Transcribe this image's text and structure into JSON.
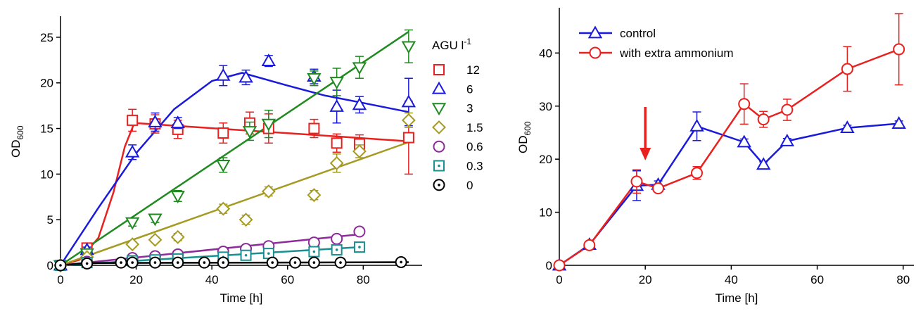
{
  "chart_data": [
    {
      "type": "scatter",
      "xlabel": "Time [h]",
      "ylabel": {
        "main": "OD",
        "sub": "600"
      },
      "xlim": [
        0,
        95
      ],
      "ylim": [
        0,
        27
      ],
      "xticks": [
        "0",
        "20",
        "40",
        "60",
        "80"
      ],
      "yticks": [
        "0",
        "5",
        "10",
        "15",
        "20",
        "25"
      ],
      "legend": {
        "title": "AGU l",
        "title_sup": "-1",
        "placement": "right of plot"
      },
      "series": [
        {
          "name": "12",
          "color": "#e8211f",
          "marker": "square",
          "x": [
            0,
            7,
            19,
            25,
            31,
            43,
            50,
            55,
            67,
            73,
            79,
            92
          ],
          "y": [
            0,
            1.9,
            15.9,
            15.5,
            14.9,
            14.5,
            15.6,
            15.0,
            15.0,
            13.4,
            13.3,
            14.0
          ],
          "err": [
            0,
            0.3,
            1.2,
            1.0,
            1.0,
            1.1,
            1.2,
            1.6,
            1.0,
            1.0,
            1.0,
            4.0
          ],
          "fit": [
            [
              0,
              0
            ],
            [
              5,
              0.6
            ],
            [
              10,
              3
            ],
            [
              14,
              8
            ],
            [
              17,
              13
            ],
            [
              19.5,
              15.6
            ],
            [
              92,
              13.6
            ]
          ]
        },
        {
          "name": "6",
          "color": "#1a1adc",
          "marker": "triangle-up",
          "x": [
            0,
            7,
            19,
            25,
            31,
            43,
            49,
            55,
            67,
            73,
            79,
            92
          ],
          "y": [
            0,
            1.7,
            12.4,
            15.7,
            15.6,
            20.8,
            20.6,
            22.4,
            20.7,
            17.4,
            17.6,
            17.9
          ],
          "err": [
            0,
            0.3,
            0.8,
            1.0,
            0.6,
            1.1,
            0.8,
            0.6,
            0.8,
            1.8,
            0.9,
            2.6
          ],
          "fit": [
            [
              0,
              0
            ],
            [
              10,
              6.3
            ],
            [
              20,
              12.3
            ],
            [
              30,
              17.1
            ],
            [
              40,
              20.2
            ],
            [
              48,
              21.1
            ],
            [
              60,
              19.7
            ],
            [
              70,
              18.6
            ],
            [
              80,
              17.8
            ],
            [
              92,
              16.8
            ]
          ]
        },
        {
          "name": "3",
          "color": "#1f8a1f",
          "marker": "triangle-down",
          "x": [
            0,
            7,
            19,
            25,
            31,
            43,
            50,
            55,
            67,
            73,
            79,
            92
          ],
          "y": [
            0,
            1.3,
            4.7,
            5.1,
            7.6,
            11.0,
            14.7,
            15.5,
            20.5,
            20.1,
            21.7,
            24.0
          ],
          "err": [
            0,
            0.3,
            0.4,
            0.4,
            0.6,
            0.8,
            1.0,
            1.5,
            0.8,
            1.5,
            1.2,
            1.8
          ],
          "fit": [
            [
              0,
              0
            ],
            [
              92,
              25.6
            ]
          ]
        },
        {
          "name": "1.5",
          "color": "#a59a22",
          "marker": "diamond",
          "x": [
            0,
            7,
            19,
            25,
            31,
            43,
            49,
            55,
            67,
            73,
            79,
            92
          ],
          "y": [
            0,
            0.9,
            2.3,
            2.8,
            3.1,
            6.2,
            5.0,
            8.1,
            7.7,
            11.2,
            12.5,
            15.9
          ],
          "err": [
            0,
            0.2,
            0.3,
            0.3,
            0.4,
            0.5,
            0.5,
            0.5,
            0.5,
            1.0,
            0.7,
            0.8
          ],
          "fit": [
            [
              0,
              0
            ],
            [
              92,
              13.5
            ]
          ]
        },
        {
          "name": "0.6",
          "color": "#8e2a9b",
          "marker": "circle",
          "x": [
            0,
            7,
            19,
            25,
            31,
            43,
            49,
            55,
            67,
            73,
            79
          ],
          "y": [
            0,
            0.4,
            0.8,
            1.0,
            1.2,
            1.5,
            1.8,
            2.1,
            2.5,
            2.9,
            3.7
          ],
          "err": [
            0,
            0,
            0,
            0,
            0,
            0,
            0,
            0,
            0,
            0,
            0
          ],
          "fit": [
            [
              0,
              0
            ],
            [
              79,
              3.4
            ]
          ]
        },
        {
          "name": "0.3",
          "color": "#1a8f8f",
          "marker": "square-dot",
          "x": [
            0,
            7,
            19,
            25,
            31,
            43,
            49,
            55,
            67,
            73,
            79
          ],
          "y": [
            0,
            0.3,
            0.5,
            0.6,
            0.7,
            0.9,
            1.1,
            1.3,
            1.5,
            1.7,
            2.0
          ],
          "err": [
            0,
            0,
            0,
            0,
            0,
            0,
            0,
            0,
            0,
            0,
            0
          ],
          "fit": [
            [
              0,
              0
            ],
            [
              79,
              2.0
            ]
          ]
        },
        {
          "name": "0",
          "color": "#000000",
          "marker": "circle-dot",
          "x": [
            0,
            7,
            16,
            19,
            25,
            31,
            38,
            43,
            56,
            62,
            67,
            74,
            90
          ],
          "y": [
            0,
            0.2,
            0.3,
            0.3,
            0.3,
            0.3,
            0.3,
            0.3,
            0.3,
            0.3,
            0.3,
            0.3,
            0.35
          ],
          "err": [
            0,
            0,
            0,
            0,
            0,
            0,
            0,
            0,
            0,
            0,
            0,
            0,
            0
          ],
          "fit": [
            [
              0,
              0
            ],
            [
              7,
              0.25
            ],
            [
              92,
              0.35
            ]
          ]
        }
      ]
    },
    {
      "type": "line",
      "xlabel": "Time [h]",
      "ylabel": {
        "main": "OD",
        "sub": "600"
      },
      "xlim": [
        0,
        82
      ],
      "ylim": [
        0,
        48
      ],
      "xticks": [
        "0",
        "20",
        "40",
        "60",
        "80"
      ],
      "yticks": [
        "0",
        "10",
        "20",
        "30",
        "40"
      ],
      "legend": {
        "placement": "top-left"
      },
      "annotation": {
        "type": "arrow",
        "x": 20,
        "color": "#e8211f"
      },
      "series": [
        {
          "name": "control",
          "color": "#1a1adc",
          "marker": "triangle-up",
          "x": [
            0,
            7,
            18,
            23,
            32,
            43,
            47.5,
            53,
            67,
            79
          ],
          "y": [
            0,
            3.9,
            15.0,
            15.2,
            26.2,
            23.2,
            19.0,
            23.4,
            25.9,
            26.7
          ],
          "err": [
            0,
            0.5,
            2.8,
            0.7,
            2.7,
            0.6,
            0.5,
            0.5,
            0.5,
            0.5
          ]
        },
        {
          "name": "with extra ammonium",
          "color": "#e8211f",
          "marker": "circle",
          "x": [
            0,
            7,
            18,
            23,
            32,
            43,
            47.5,
            53,
            67,
            79
          ],
          "y": [
            0,
            3.8,
            15.8,
            14.5,
            17.4,
            30.4,
            27.5,
            29.3,
            37.0,
            40.7
          ],
          "err": [
            0,
            0.5,
            2.2,
            0.7,
            1.2,
            3.8,
            1.5,
            2.0,
            4.2,
            6.7
          ]
        }
      ]
    }
  ]
}
